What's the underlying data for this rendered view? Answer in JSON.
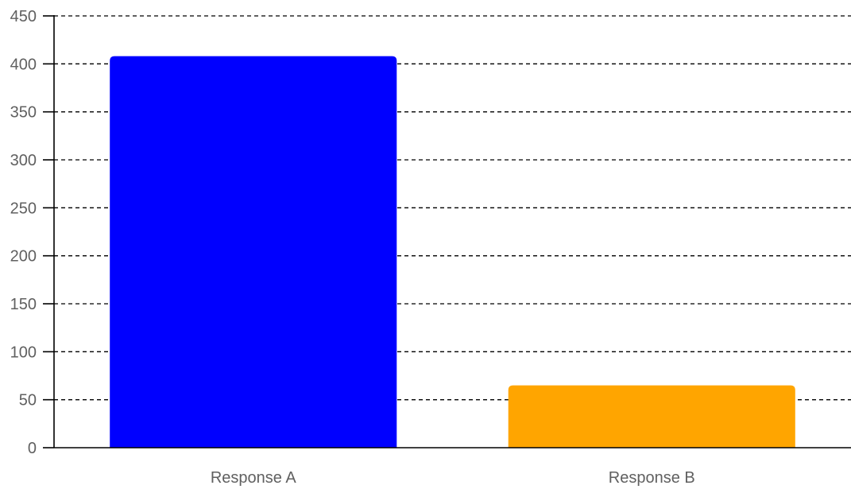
{
  "chart_data": {
    "type": "bar",
    "categories": [
      "Response A",
      "Response B"
    ],
    "values": [
      408,
      65
    ],
    "bar_colors": [
      "#0000ff",
      "#ffa500"
    ],
    "title": "",
    "xlabel": "",
    "ylabel": "",
    "ylim": [
      0,
      450
    ],
    "yticks": [
      0,
      50,
      100,
      150,
      200,
      250,
      300,
      350,
      400,
      450
    ],
    "ytick_labels": [
      "0",
      "50",
      "100",
      "150",
      "200",
      "250",
      "300",
      "350",
      "400",
      "450"
    ],
    "grid": true,
    "grid_style": "dashed",
    "legend": false
  }
}
